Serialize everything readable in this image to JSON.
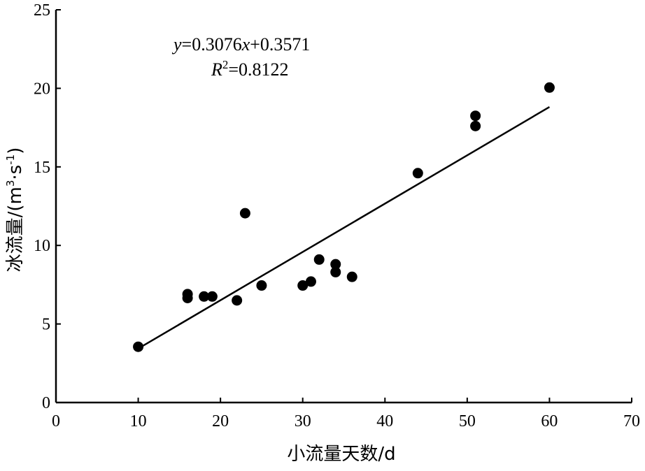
{
  "chart_data": {
    "type": "scatter",
    "xlabel": "小流量天数/d",
    "ylabel_main": "冰流量/(m",
    "ylabel_sup1": "3",
    "ylabel_mid": "·s",
    "ylabel_sup2": "-1",
    "ylabel_end": ")",
    "xlim": [
      0,
      70
    ],
    "ylim": [
      0,
      25
    ],
    "x_ticks": [
      0,
      10,
      20,
      30,
      40,
      50,
      60,
      70
    ],
    "y_ticks": [
      0,
      5,
      10,
      15,
      20,
      25
    ],
    "points": [
      {
        "x": 10,
        "y": 3.55
      },
      {
        "x": 16,
        "y": 6.9
      },
      {
        "x": 16,
        "y": 6.65
      },
      {
        "x": 18,
        "y": 6.75
      },
      {
        "x": 19,
        "y": 6.75
      },
      {
        "x": 22,
        "y": 6.5
      },
      {
        "x": 23,
        "y": 12.05
      },
      {
        "x": 25,
        "y": 7.45
      },
      {
        "x": 30,
        "y": 7.45
      },
      {
        "x": 31,
        "y": 7.7
      },
      {
        "x": 32,
        "y": 9.1
      },
      {
        "x": 34,
        "y": 8.8
      },
      {
        "x": 34,
        "y": 8.3
      },
      {
        "x": 36,
        "y": 8.0
      },
      {
        "x": 44,
        "y": 14.6
      },
      {
        "x": 51,
        "y": 18.25
      },
      {
        "x": 51,
        "y": 17.6
      },
      {
        "x": 60,
        "y": 20.05
      }
    ],
    "fit": {
      "slope": 0.3076,
      "intercept": 0.3571,
      "x_range": [
        10,
        60
      ],
      "eq_y": "y",
      "eq_mid": "=0.3076",
      "eq_x": "x",
      "eq_end": "+0.3571",
      "r2_R": "R",
      "r2_sup": "2",
      "r2_end": "=0.8122"
    }
  }
}
